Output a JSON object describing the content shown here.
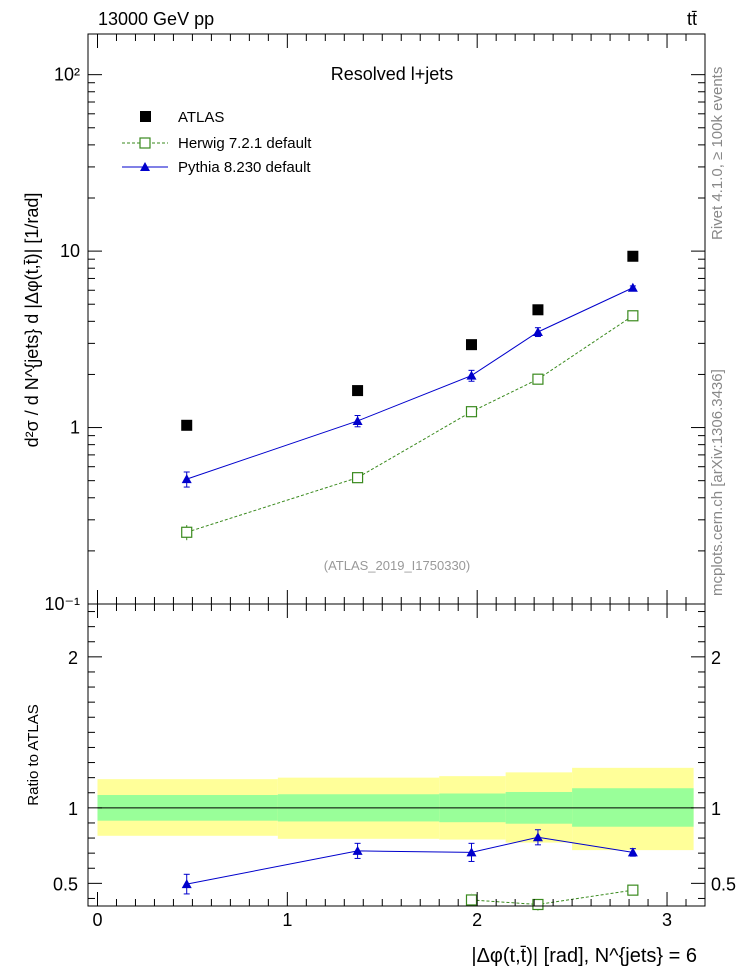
{
  "header": {
    "energy_label": "13000 GeV pp",
    "process_label": "tt̄"
  },
  "side_labels": {
    "rivet": "Rivet 4.1.0, ≥ 100k events",
    "mcplots": "mcplots.cern.ch [arXiv:1306.3436]"
  },
  "chart_data": [
    {
      "panel": "main",
      "type": "scatter",
      "title": "Resolved l+jets",
      "watermark": "(ATLAS_2019_I1750330)",
      "ylabel": "d²σ / d N^{jets} d |Δφ(t,t̄)| [1/rad]",
      "yscale": "log",
      "ylim": [
        0.1,
        170
      ],
      "xlim": [
        -0.05,
        3.2
      ],
      "y_tick_labels": [
        "10⁻¹",
        "1",
        "10",
        "10²"
      ],
      "x": [
        0.47,
        1.37,
        1.97,
        2.32,
        2.82
      ],
      "series": [
        {
          "name": "ATLAS",
          "marker": "square-filled",
          "color": "#000000",
          "values": [
            1.03,
            1.62,
            2.95,
            4.65,
            9.35
          ]
        },
        {
          "name": "Herwig 7.2.1 default",
          "marker": "square-open",
          "line": "dashed",
          "color": "#3a8a1e",
          "values": [
            0.255,
            0.52,
            1.23,
            1.88,
            4.3
          ],
          "errors": [
            0.025,
            0.03,
            0.07,
            0.1,
            0.15
          ]
        },
        {
          "name": "Pythia 8.230 default",
          "marker": "triangle",
          "line": "solid",
          "color": "#0000cc",
          "values": [
            0.51,
            1.09,
            1.97,
            3.48,
            6.2
          ],
          "errors": [
            0.05,
            0.08,
            0.14,
            0.2,
            0.15
          ]
        }
      ]
    },
    {
      "panel": "ratio",
      "type": "line",
      "ylabel": "Ratio to ATLAS",
      "xlabel": "|Δφ(t,t̄)| [rad], N^{jets} = 6",
      "ylim": [
        0.35,
        2.35
      ],
      "xlim": [
        -0.05,
        3.2
      ],
      "x_tick_labels": [
        "0",
        "1",
        "2",
        "3"
      ],
      "y_tick_labels": [
        "0.5",
        "1",
        "2"
      ],
      "bin_edges": [
        0,
        0.95,
        1.8,
        2.15,
        2.5,
        3.14
      ],
      "uncertainty_bands": {
        "stat_lower": [
          0.915,
          0.91,
          0.905,
          0.895,
          0.875
        ],
        "stat_upper": [
          1.085,
          1.09,
          1.095,
          1.105,
          1.13
        ],
        "total_lower": [
          0.815,
          0.795,
          0.79,
          0.77,
          0.72
        ],
        "total_upper": [
          1.19,
          1.2,
          1.21,
          1.235,
          1.265
        ]
      },
      "series": [
        {
          "name": "Herwig 7.2.1 default",
          "color": "#3a8a1e",
          "x": [
            1.97,
            2.32,
            2.82
          ],
          "values": [
            0.39,
            0.36,
            0.455
          ],
          "errors": [
            0.04,
            0.04,
            0.015
          ]
        },
        {
          "name": "Pythia 8.230 default",
          "color": "#0000cc",
          "x": [
            0.47,
            1.37,
            1.97,
            2.32,
            2.82
          ],
          "values": [
            0.495,
            0.715,
            0.705,
            0.805,
            0.705
          ],
          "errors": [
            0.065,
            0.05,
            0.06,
            0.05,
            0.025
          ]
        }
      ]
    }
  ]
}
